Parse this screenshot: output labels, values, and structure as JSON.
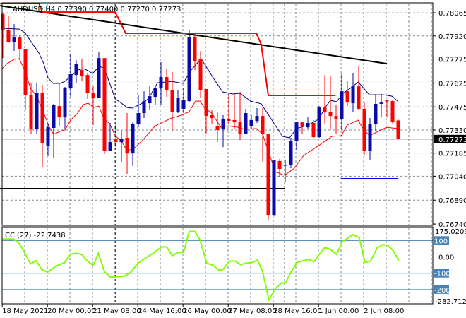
{
  "chart_data": {
    "type": "candlestick",
    "symbol_header": "AUDUSD,H4 0.77390 0.77400 0.77270 0.77273",
    "ylim": [
      0.76736,
      0.78123
    ],
    "price_ticks": [
      "0.78065",
      "0.77920",
      "0.77775",
      "0.77625",
      "0.77475",
      "0.77330",
      "0.77185",
      "0.77040",
      "0.76890",
      "0.76740"
    ],
    "current_price": "0.77273",
    "colors": {
      "bull": "#0a0aa8",
      "bear": "#ff0000",
      "ma_upper": "#000080",
      "ma_lower": "#ff0000",
      "trendline": "#000000",
      "level_line": "#4682b4",
      "cci_line": "#7fff00"
    },
    "candles_ohlc": [
      [
        0.78056,
        0.78061,
        0.77781,
        0.77954
      ],
      [
        0.77959,
        0.78047,
        0.77879,
        0.77879
      ],
      [
        0.77883,
        0.77994,
        0.77826,
        0.7791
      ],
      [
        0.7791,
        0.77923,
        0.77777,
        0.77835
      ],
      [
        0.77839,
        0.77839,
        0.77458,
        0.77547
      ],
      [
        0.77547,
        0.77626,
        0.77307,
        0.77334
      ],
      [
        0.77334,
        0.77626,
        0.77307,
        0.77564
      ],
      [
        0.77564,
        0.77613,
        0.77099,
        0.7725
      ],
      [
        0.77228,
        0.7737,
        0.77166,
        0.77347
      ],
      [
        0.77343,
        0.77494,
        0.77152,
        0.77485
      ],
      [
        0.7748,
        0.77626,
        0.77352,
        0.77409
      ],
      [
        0.77409,
        0.776,
        0.77334,
        0.77595
      ],
      [
        0.77591,
        0.77808,
        0.77538,
        0.7768
      ],
      [
        0.77675,
        0.77768,
        0.77622,
        0.77746
      ],
      [
        0.77706,
        0.77777,
        0.77635,
        0.77671
      ],
      [
        0.77675,
        0.77688,
        0.77525,
        0.7756
      ],
      [
        0.7756,
        0.77604,
        0.77361,
        0.77533
      ],
      [
        0.77533,
        0.77821,
        0.77533,
        0.77781
      ],
      [
        0.77781,
        0.77781,
        0.77179,
        0.77201
      ],
      [
        0.77201,
        0.77374,
        0.77201,
        0.77254
      ],
      [
        0.77276,
        0.77365,
        0.77223,
        0.77254
      ],
      [
        0.77254,
        0.77325,
        0.77131,
        0.77276
      ],
      [
        0.77281,
        0.77436,
        0.77055,
        0.77183
      ],
      [
        0.77183,
        0.77378,
        0.77104,
        0.7737
      ],
      [
        0.77365,
        0.77547,
        0.77347,
        0.77436
      ],
      [
        0.77436,
        0.77573,
        0.77405,
        0.77511
      ],
      [
        0.77498,
        0.77604,
        0.77454,
        0.77542
      ],
      [
        0.77538,
        0.77604,
        0.77489,
        0.77591
      ],
      [
        0.77591,
        0.77755,
        0.77489,
        0.77662
      ],
      [
        0.77662,
        0.77715,
        0.77538,
        0.77578
      ],
      [
        0.77578,
        0.77693,
        0.77325,
        0.77445
      ],
      [
        0.77445,
        0.77582,
        0.77436,
        0.77529
      ],
      [
        0.77463,
        0.77591,
        0.77436,
        0.77516
      ],
      [
        0.77511,
        0.77954,
        0.77502,
        0.7791
      ],
      [
        0.7791,
        0.77928,
        0.77706,
        0.77764
      ],
      [
        0.77773,
        0.77826,
        0.77533,
        0.77582
      ],
      [
        0.77587,
        0.77587,
        0.77303,
        0.77418
      ],
      [
        0.77423,
        0.77458,
        0.77365,
        0.77405
      ],
      [
        0.77352,
        0.7744,
        0.77254,
        0.7733
      ],
      [
        0.77334,
        0.77423,
        0.77223,
        0.774
      ],
      [
        0.774,
        0.77556,
        0.7737,
        0.77387
      ],
      [
        0.77392,
        0.77556,
        0.77339,
        0.77378
      ],
      [
        0.77383,
        0.77569,
        0.77268,
        0.77307
      ],
      [
        0.77307,
        0.77463,
        0.77307,
        0.77436
      ],
      [
        0.77352,
        0.77423,
        0.77339,
        0.77392
      ],
      [
        0.77387,
        0.77467,
        0.77374,
        0.77418
      ],
      [
        0.77418,
        0.77467,
        0.77131,
        0.77303
      ],
      [
        0.77303,
        0.77303,
        0.76763,
        0.76798
      ],
      [
        0.76798,
        0.77139,
        0.76794,
        0.77139
      ],
      [
        0.77135,
        0.77148,
        0.77037,
        0.77086
      ],
      [
        0.77108,
        0.77144,
        0.77002,
        0.77113
      ],
      [
        0.77113,
        0.77281,
        0.7709,
        0.77263
      ],
      [
        0.77263,
        0.77383,
        0.77206,
        0.77378
      ],
      [
        0.77378,
        0.77383,
        0.77303,
        0.77352
      ],
      [
        0.77347,
        0.77409,
        0.77339,
        0.77374
      ],
      [
        0.77374,
        0.77392,
        0.77281,
        0.77285
      ],
      [
        0.77285,
        0.7748,
        0.77281,
        0.77471
      ],
      [
        0.77471,
        0.77675,
        0.7737,
        0.77445
      ],
      [
        0.77445,
        0.77671,
        0.7733,
        0.77418
      ],
      [
        0.77418,
        0.77485,
        0.77303,
        0.774
      ],
      [
        0.774,
        0.77688,
        0.7733,
        0.77573
      ],
      [
        0.77573,
        0.7764,
        0.7748,
        0.77502
      ],
      [
        0.77498,
        0.77688,
        0.77445,
        0.77604
      ],
      [
        0.77604,
        0.77728,
        0.77458,
        0.77463
      ],
      [
        0.77463,
        0.77502,
        0.7717,
        0.77201
      ],
      [
        0.77201,
        0.77405,
        0.77144,
        0.77365
      ],
      [
        0.77365,
        0.77556,
        0.77325,
        0.77494
      ],
      [
        0.77494,
        0.77556,
        0.77409,
        0.77502
      ],
      [
        0.77516,
        0.77516,
        0.77409,
        0.77511
      ],
      [
        0.77511,
        0.7752,
        0.7737,
        0.77383
      ],
      [
        0.7739,
        0.774,
        0.7727,
        0.77273
      ]
    ],
    "ma_upper": [
      [
        -0.1,
        0.77968
      ],
      [
        2.9,
        0.77963
      ],
      [
        3.9,
        0.77941
      ],
      [
        5.1,
        0.77879
      ],
      [
        6.4,
        0.77812
      ],
      [
        7.25,
        0.77746
      ],
      [
        8,
        0.77657
      ],
      [
        8.9,
        0.77622
      ],
      [
        10.1,
        0.77622
      ],
      [
        11,
        0.77635
      ],
      [
        12,
        0.77666
      ],
      [
        13.25,
        0.77706
      ],
      [
        14.25,
        0.77715
      ],
      [
        15.1,
        0.77702
      ],
      [
        15.9,
        0.77684
      ],
      [
        17,
        0.77728
      ],
      [
        17.9,
        0.7772
      ],
      [
        18.9,
        0.77626
      ],
      [
        19.9,
        0.77525
      ],
      [
        21,
        0.77498
      ],
      [
        22,
        0.77471
      ],
      [
        22.9,
        0.77467
      ],
      [
        24.5,
        0.77494
      ],
      [
        25.75,
        0.77525
      ],
      [
        27.4,
        0.77626
      ],
      [
        29.9,
        0.77635
      ],
      [
        31.9,
        0.77622
      ],
      [
        33.25,
        0.77702
      ],
      [
        35.1,
        0.77777
      ],
      [
        37,
        0.77671
      ],
      [
        38.9,
        0.77569
      ],
      [
        40.75,
        0.77556
      ],
      [
        42,
        0.7756
      ],
      [
        43.9,
        0.77511
      ],
      [
        45.75,
        0.77494
      ],
      [
        47.4,
        0.77405
      ],
      [
        49.5,
        0.7729
      ],
      [
        50.75,
        0.77281
      ],
      [
        52,
        0.77339
      ],
      [
        54.1,
        0.77361
      ],
      [
        56,
        0.774
      ],
      [
        57,
        0.77467
      ],
      [
        58,
        0.77516
      ],
      [
        59.1,
        0.77507
      ],
      [
        60.1,
        0.77556
      ],
      [
        62,
        0.77604
      ],
      [
        62.9,
        0.77631
      ],
      [
        64.9,
        0.77551
      ],
      [
        67.4,
        0.77551
      ],
      [
        68.9,
        0.77542
      ],
      [
        69.9,
        0.77511
      ]
    ],
    "ma_lower": [
      [
        -0.1,
        0.77715
      ],
      [
        0.75,
        0.77746
      ],
      [
        2,
        0.77773
      ],
      [
        2.9,
        0.77777
      ],
      [
        3.9,
        0.77702
      ],
      [
        4.9,
        0.77591
      ],
      [
        5.9,
        0.77547
      ],
      [
        7,
        0.77458
      ],
      [
        8.25,
        0.77347
      ],
      [
        9,
        0.77303
      ],
      [
        10.1,
        0.77321
      ],
      [
        11,
        0.7733
      ],
      [
        12,
        0.77392
      ],
      [
        13.25,
        0.77436
      ],
      [
        14.25,
        0.77489
      ],
      [
        15.1,
        0.77498
      ],
      [
        16.1,
        0.77471
      ],
      [
        17,
        0.7748
      ],
      [
        17.9,
        0.774
      ],
      [
        18.9,
        0.7737
      ],
      [
        19.9,
        0.77294
      ],
      [
        21,
        0.77259
      ],
      [
        22,
        0.77201
      ],
      [
        23.25,
        0.77214
      ],
      [
        24.9,
        0.77272
      ],
      [
        27,
        0.77356
      ],
      [
        29.9,
        0.77405
      ],
      [
        32,
        0.77427
      ],
      [
        33,
        0.77445
      ],
      [
        34.1,
        0.77511
      ],
      [
        34.9,
        0.77511
      ],
      [
        35.75,
        0.77467
      ],
      [
        37,
        0.77436
      ],
      [
        38.6,
        0.77347
      ],
      [
        39.9,
        0.77356
      ],
      [
        41.6,
        0.77347
      ],
      [
        42.9,
        0.77334
      ],
      [
        44.9,
        0.77339
      ],
      [
        46,
        0.77303
      ],
      [
        48.25,
        0.77068
      ],
      [
        49.9,
        0.77046
      ],
      [
        51.6,
        0.7709
      ],
      [
        53.25,
        0.7717
      ],
      [
        55.75,
        0.77228
      ],
      [
        58.25,
        0.7729
      ],
      [
        59.9,
        0.77294
      ],
      [
        61,
        0.77361
      ],
      [
        62.9,
        0.77392
      ],
      [
        63.6,
        0.77347
      ],
      [
        64.9,
        0.77294
      ],
      [
        67.9,
        0.77347
      ],
      [
        69.9,
        0.77339
      ]
    ],
    "trendline": [
      [
        -0.5,
        0.78109
      ],
      [
        68,
        0.77746
      ]
    ],
    "red_step_line": [
      [
        -0.5,
        0.78123
      ],
      [
        6.4,
        0.78123
      ],
      [
        7,
        0.78069
      ],
      [
        19.9,
        0.78069
      ],
      [
        21.75,
        0.77937
      ],
      [
        44.9,
        0.77937
      ],
      [
        45.75,
        0.77866
      ],
      [
        47,
        0.77547
      ],
      [
        58.9,
        0.77547
      ]
    ],
    "support_line": {
      "from": -0.5,
      "to": 49.9,
      "price": 0.76962
    },
    "blue_level_line": {
      "from": 59.9,
      "to": 69.9,
      "price": 0.77024
    },
    "time_labels": [
      {
        "index": -0.1,
        "text": "18 May 2021"
      },
      {
        "index": 7.9,
        "text": "20 May 00:00"
      },
      {
        "index": 15.9,
        "text": "21 May 08:00"
      },
      {
        "index": 23.9,
        "text": "24 May 16:00"
      },
      {
        "index": 31.9,
        "text": "26 May 00:00"
      },
      {
        "index": 39.9,
        "text": "27 May 08:00"
      },
      {
        "index": 47.9,
        "text": "28 May 16:00"
      },
      {
        "index": 55.9,
        "text": "1 Jun 00:00"
      },
      {
        "index": 63.9,
        "text": "2 Jun 08:00"
      }
    ],
    "period_separators": [
      19.9,
      49.9
    ],
    "cci": {
      "label": "CCI(27) -22.7438",
      "ylim": [
        -282.712,
        175.0203
      ],
      "axis_max_label": "175.0203",
      "axis_min_label": "-282.712",
      "zero_label": "0.00",
      "levels": [
        "100",
        "-100",
        "-200"
      ],
      "values": [
        [
          -0.1,
          109
        ],
        [
          1.9,
          109
        ],
        [
          2.9,
          83
        ],
        [
          4,
          17
        ],
        [
          4.9,
          -43
        ],
        [
          5.9,
          -23
        ],
        [
          6.9,
          -77
        ],
        [
          7.9,
          -94
        ],
        [
          9.5,
          -55
        ],
        [
          10.9,
          -36
        ],
        [
          12,
          17
        ],
        [
          13.1,
          22
        ],
        [
          14,
          14
        ],
        [
          15,
          -26
        ],
        [
          16,
          -52
        ],
        [
          16.9,
          23
        ],
        [
          18,
          -91
        ],
        [
          19.1,
          -125
        ],
        [
          21.6,
          -117
        ],
        [
          22.75,
          -91
        ],
        [
          24,
          -36
        ],
        [
          25.4,
          -4
        ],
        [
          26.6,
          22
        ],
        [
          28.1,
          61
        ],
        [
          29,
          61
        ],
        [
          30,
          7
        ],
        [
          30.9,
          26
        ],
        [
          32,
          28
        ],
        [
          33,
          155
        ],
        [
          34,
          155
        ],
        [
          34.9,
          104
        ],
        [
          36.1,
          -38
        ],
        [
          37.25,
          -52
        ],
        [
          38.25,
          -81
        ],
        [
          39,
          -77
        ],
        [
          40.1,
          -26
        ],
        [
          41.1,
          -26
        ],
        [
          42.1,
          -48
        ],
        [
          43,
          -38
        ],
        [
          44.1,
          -35
        ],
        [
          45.1,
          -19
        ],
        [
          46,
          -91
        ],
        [
          47.1,
          -262
        ],
        [
          48.25,
          -193
        ],
        [
          49.4,
          -159
        ],
        [
          50.1,
          -157
        ],
        [
          50.9,
          -99
        ],
        [
          52.1,
          -33
        ],
        [
          53.25,
          -23
        ],
        [
          54.1,
          -16
        ],
        [
          55.1,
          -29
        ],
        [
          55.9,
          10
        ],
        [
          57,
          57
        ],
        [
          58,
          46
        ],
        [
          59.1,
          14
        ],
        [
          60.1,
          93
        ],
        [
          62,
          136
        ],
        [
          63.1,
          116
        ],
        [
          64.1,
          -33
        ],
        [
          65.1,
          -26
        ],
        [
          66.25,
          54
        ],
        [
          67.25,
          75
        ],
        [
          68.1,
          71
        ],
        [
          69.1,
          39
        ],
        [
          70.1,
          -22.7438
        ]
      ]
    }
  }
}
